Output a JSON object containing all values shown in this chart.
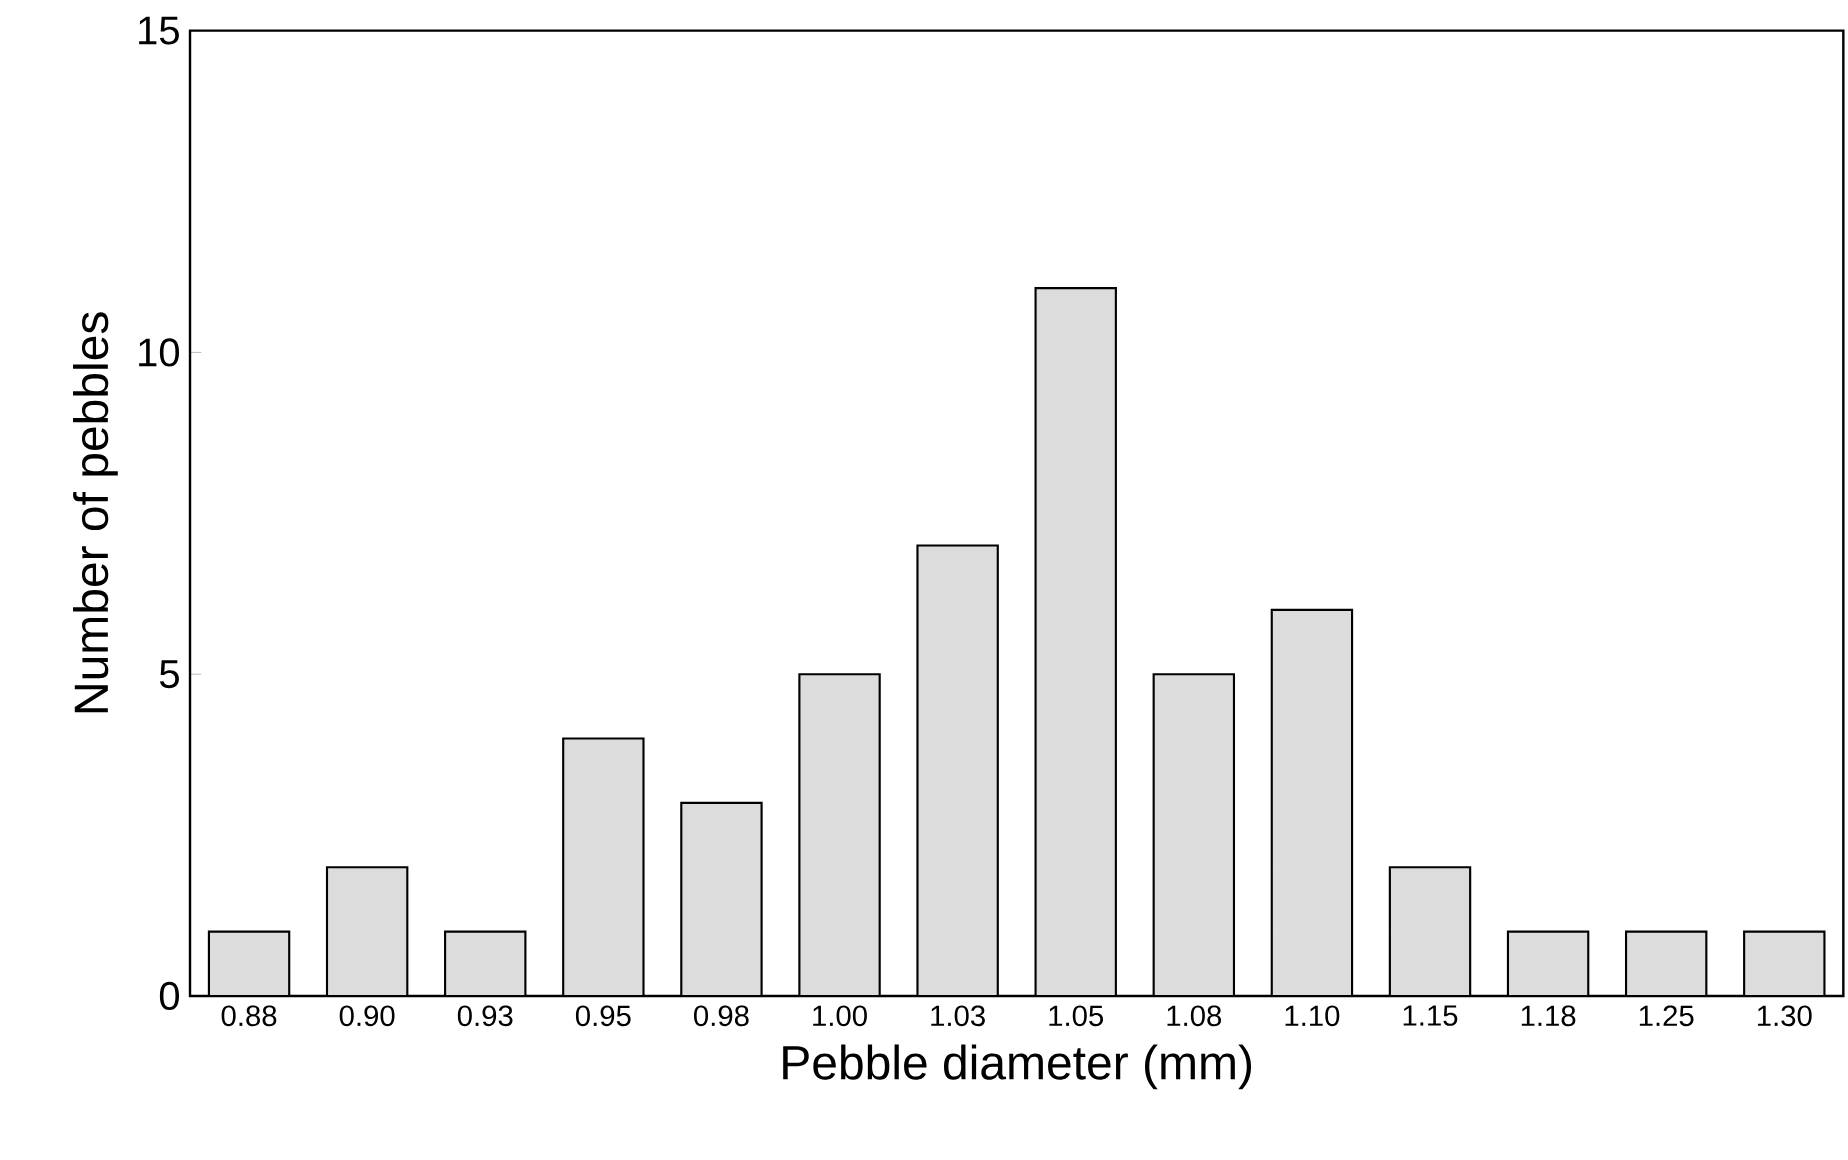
{
  "chart_data": {
    "type": "bar",
    "xlabel": "Pebble diameter (mm)",
    "ylabel": "Number of pebbles",
    "categories": [
      "0.88",
      "0.90",
      "0.93",
      "0.95",
      "0.98",
      "1.00",
      "1.03",
      "1.05",
      "1.08",
      "1.10",
      "1.15",
      "1.18",
      "1.25",
      "1.30"
    ],
    "values": [
      1,
      2,
      1,
      4,
      3,
      5,
      7,
      11,
      5,
      6,
      2,
      1,
      1,
      1
    ],
    "color": "#dcdcdc",
    "ylim": [
      0,
      15
    ],
    "yticks": [
      0,
      5,
      10,
      15
    ]
  }
}
